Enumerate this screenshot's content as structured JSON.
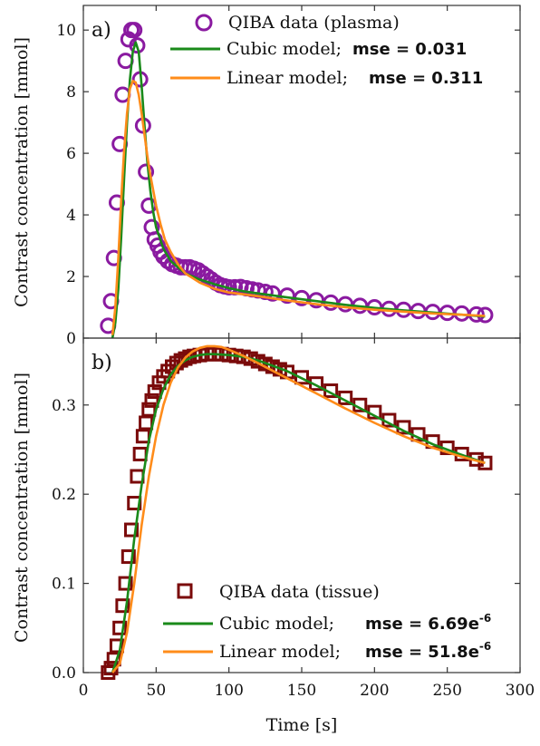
{
  "figure": {
    "xlabel": "Time [s]",
    "x_ticks": [
      "0",
      "50",
      "100",
      "150",
      "200",
      "250",
      "300"
    ]
  },
  "chart_data": [
    {
      "type": "line",
      "panel_label": "a)",
      "ylabel": "Contrast concentration [mmol]",
      "xlim": [
        0,
        300
      ],
      "ylim": [
        0,
        10.8
      ],
      "y_ticks": [
        "0",
        "2",
        "4",
        "6",
        "8",
        "10"
      ],
      "legend_position": "top-right",
      "series": [
        {
          "name": "QIBA data (plasma)",
          "kind": "markers",
          "marker": "circle",
          "color": "#8a1aa0",
          "x": [
            17,
            19,
            21,
            23,
            25,
            27,
            29,
            31,
            33,
            35,
            37,
            39,
            41,
            43,
            45,
            47,
            49,
            51,
            53,
            55,
            58,
            61,
            64,
            67,
            70,
            73,
            76,
            79,
            82,
            85,
            88,
            91,
            94,
            97,
            100,
            104,
            108,
            112,
            116,
            120,
            125,
            130,
            140,
            150,
            160,
            170,
            180,
            190,
            200,
            210,
            220,
            230,
            240,
            250,
            260,
            270,
            276
          ],
          "y": [
            0.4,
            1.2,
            2.6,
            4.4,
            6.3,
            7.9,
            9.0,
            9.7,
            10.0,
            10.0,
            9.5,
            8.4,
            6.9,
            5.4,
            4.3,
            3.6,
            3.2,
            3.0,
            2.8,
            2.65,
            2.5,
            2.4,
            2.35,
            2.3,
            2.3,
            2.3,
            2.25,
            2.2,
            2.1,
            2.0,
            1.9,
            1.8,
            1.72,
            1.68,
            1.65,
            1.65,
            1.66,
            1.62,
            1.58,
            1.55,
            1.5,
            1.45,
            1.38,
            1.3,
            1.23,
            1.15,
            1.1,
            1.05,
            1.0,
            0.95,
            0.92,
            0.88,
            0.85,
            0.82,
            0.8,
            0.77,
            0.75
          ]
        },
        {
          "name": "Cubic model;",
          "mse_label": "mse = 0.031",
          "kind": "line",
          "color": "#1a8a1a",
          "x": [
            20,
            22,
            24,
            26,
            28,
            30,
            32,
            34,
            36,
            38,
            40,
            42,
            44,
            46,
            48,
            50,
            55,
            60,
            70,
            80,
            90,
            100,
            110,
            120,
            140,
            160,
            180,
            200,
            220,
            240,
            260,
            276
          ],
          "y": [
            0.0,
            0.5,
            1.6,
            3.3,
            5.2,
            7.0,
            8.4,
            9.3,
            9.6,
            9.3,
            8.2,
            6.9,
            5.7,
            4.8,
            4.1,
            3.6,
            2.9,
            2.5,
            2.1,
            1.9,
            1.75,
            1.62,
            1.52,
            1.45,
            1.32,
            1.2,
            1.08,
            0.98,
            0.9,
            0.83,
            0.76,
            0.7
          ]
        },
        {
          "name": "Linear model;",
          "mse_label": "mse = 0.311",
          "kind": "line",
          "color": "#ff8c1a",
          "x": [
            20,
            22,
            24,
            26,
            28,
            30,
            32,
            34,
            36,
            38,
            40,
            42,
            44,
            46,
            48,
            50,
            53,
            56,
            60,
            65,
            70,
            80,
            90,
            100,
            110,
            120,
            140,
            160,
            180,
            200,
            220,
            240,
            260,
            276
          ],
          "y": [
            0.1,
            1.0,
            2.6,
            4.5,
            6.1,
            7.3,
            8.1,
            8.35,
            8.3,
            7.9,
            7.3,
            6.6,
            5.9,
            5.3,
            4.8,
            4.3,
            3.7,
            3.2,
            2.8,
            2.4,
            2.1,
            1.8,
            1.6,
            1.48,
            1.42,
            1.36,
            1.22,
            1.1,
            1.0,
            0.92,
            0.86,
            0.8,
            0.76,
            0.72
          ]
        }
      ]
    },
    {
      "type": "line",
      "panel_label": "b)",
      "ylabel": "Contrast concentration [mmol]",
      "xlim": [
        0,
        300
      ],
      "ylim": [
        0,
        0.375
      ],
      "y_ticks": [
        "0.0",
        "0.1",
        "0.2",
        "0.3"
      ],
      "legend_position": "bottom-right",
      "series": [
        {
          "name": "QIBA data (tissue)",
          "kind": "markers",
          "marker": "square",
          "color": "#7a0a0a",
          "x": [
            17,
            19,
            21,
            23,
            25,
            27,
            29,
            31,
            33,
            35,
            37,
            39,
            41,
            43,
            45,
            47,
            49,
            52,
            55,
            58,
            61,
            64,
            67,
            70,
            73,
            76,
            80,
            85,
            90,
            95,
            100,
            105,
            110,
            115,
            120,
            125,
            130,
            135,
            140,
            150,
            160,
            170,
            180,
            190,
            200,
            210,
            220,
            230,
            240,
            250,
            260,
            270,
            276
          ],
          "y": [
            0.0,
            0.005,
            0.015,
            0.03,
            0.05,
            0.075,
            0.1,
            0.13,
            0.16,
            0.19,
            0.22,
            0.245,
            0.265,
            0.28,
            0.295,
            0.305,
            0.315,
            0.325,
            0.332,
            0.338,
            0.343,
            0.347,
            0.35,
            0.352,
            0.354,
            0.355,
            0.356,
            0.357,
            0.357,
            0.357,
            0.356,
            0.355,
            0.354,
            0.352,
            0.349,
            0.346,
            0.343,
            0.34,
            0.337,
            0.331,
            0.324,
            0.316,
            0.308,
            0.3,
            0.292,
            0.283,
            0.275,
            0.267,
            0.259,
            0.252,
            0.245,
            0.239,
            0.235
          ]
        },
        {
          "name": "Cubic model;",
          "mse_label": "mse = 6.69e",
          "mse_exponent": "-6",
          "kind": "line",
          "color": "#1a8a1a",
          "x": [
            20,
            25,
            30,
            35,
            40,
            45,
            50,
            55,
            60,
            65,
            70,
            75,
            80,
            85,
            90,
            100,
            110,
            120,
            140,
            160,
            180,
            200,
            220,
            240,
            260,
            276
          ],
          "y": [
            0.0,
            0.025,
            0.08,
            0.15,
            0.21,
            0.26,
            0.295,
            0.318,
            0.334,
            0.344,
            0.35,
            0.354,
            0.356,
            0.357,
            0.357,
            0.356,
            0.354,
            0.35,
            0.338,
            0.322,
            0.305,
            0.288,
            0.271,
            0.256,
            0.244,
            0.235
          ]
        },
        {
          "name": "Linear model;",
          "mse_label": "mse = 51.8e",
          "mse_exponent": "-6",
          "kind": "line",
          "color": "#ff8c1a",
          "x": [
            20,
            25,
            30,
            35,
            40,
            45,
            50,
            55,
            60,
            65,
            70,
            75,
            80,
            85,
            90,
            95,
            100,
            110,
            120,
            140,
            160,
            180,
            200,
            220,
            240,
            260,
            276
          ],
          "y": [
            0.0,
            0.01,
            0.045,
            0.1,
            0.165,
            0.22,
            0.265,
            0.3,
            0.325,
            0.342,
            0.353,
            0.36,
            0.364,
            0.366,
            0.366,
            0.365,
            0.362,
            0.355,
            0.347,
            0.33,
            0.313,
            0.296,
            0.28,
            0.265,
            0.252,
            0.242,
            0.235
          ]
        }
      ]
    }
  ]
}
